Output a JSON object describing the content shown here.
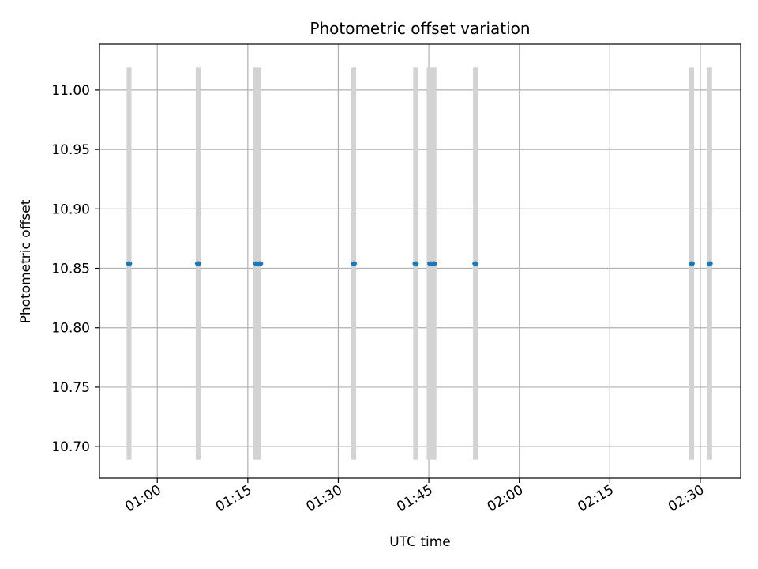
{
  "chart_data": {
    "type": "scatter",
    "title": "Photometric offset variation",
    "xlabel": "UTC time",
    "ylabel": "Photometric offset",
    "x_tick_labels": [
      "01:00",
      "01:15",
      "01:30",
      "01:45",
      "02:00",
      "02:15",
      "02:30"
    ],
    "y_tick_labels": [
      "10.70",
      "10.75",
      "10.80",
      "10.85",
      "10.90",
      "10.95",
      "11.00"
    ],
    "x_ticks": [
      "01:00",
      "01:15",
      "01:30",
      "01:45",
      "02:00",
      "02:15",
      "02:30"
    ],
    "y_ticks": [
      10.7,
      10.75,
      10.8,
      10.85,
      10.9,
      10.95,
      11.0
    ],
    "xlim": [
      "00:50:25",
      "02:36:41"
    ],
    "ylim": [
      10.6735,
      11.0385
    ],
    "grid": true,
    "points": [
      {
        "x": "00:55:19",
        "y": 10.854
      },
      {
        "x": "01:06:45",
        "y": 10.854
      },
      {
        "x": "01:16:25",
        "y": 10.854
      },
      {
        "x": "01:17:02",
        "y": 10.854
      },
      {
        "x": "01:32:34",
        "y": 10.854
      },
      {
        "x": "01:42:49",
        "y": 10.854
      },
      {
        "x": "01:45:15",
        "y": 10.854
      },
      {
        "x": "01:45:52",
        "y": 10.854
      },
      {
        "x": "01:52:44",
        "y": 10.854
      },
      {
        "x": "02:28:34",
        "y": 10.854
      },
      {
        "x": "02:31:33",
        "y": 10.854
      }
    ],
    "spans": [
      {
        "start": "00:54:55",
        "end": "00:55:43",
        "ymin": 10.689,
        "ymax": 11.019
      },
      {
        "start": "01:06:22",
        "end": "01:07:10",
        "ymin": 10.689,
        "ymax": 11.019
      },
      {
        "start": "01:15:50",
        "end": "01:17:14",
        "ymin": 10.689,
        "ymax": 11.019
      },
      {
        "start": "01:32:10",
        "end": "01:32:58",
        "ymin": 10.689,
        "ymax": 11.019
      },
      {
        "start": "01:42:25",
        "end": "01:43:13",
        "ymin": 10.689,
        "ymax": 11.019
      },
      {
        "start": "01:44:39",
        "end": "01:46:16",
        "ymin": 10.689,
        "ymax": 11.019
      },
      {
        "start": "01:52:20",
        "end": "01:53:08",
        "ymin": 10.689,
        "ymax": 11.019
      },
      {
        "start": "02:28:10",
        "end": "02:28:58",
        "ymin": 10.689,
        "ymax": 11.019
      },
      {
        "start": "02:31:09",
        "end": "02:31:57",
        "ymin": 10.689,
        "ymax": 11.019
      }
    ],
    "colors": {
      "points": "#1f77b4",
      "spans": "#d3d3d3",
      "grid": "#b0b0b0",
      "axes": "#000000"
    }
  }
}
